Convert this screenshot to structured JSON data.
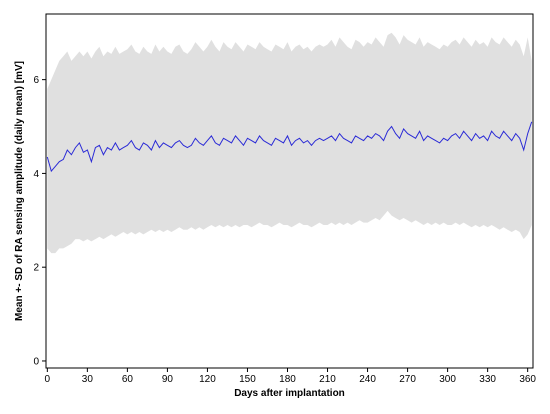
{
  "chart_data": {
    "type": "area",
    "xlabel": "Days after implantation",
    "ylabel": "Mean +- SD of RA sensing amplitude (daily mean) [mV]",
    "xlim": [
      -1,
      364
    ],
    "ylim": [
      -0.15,
      7.4
    ],
    "x_ticks": [
      0,
      30,
      60,
      90,
      120,
      150,
      180,
      210,
      240,
      270,
      300,
      330,
      360
    ],
    "y_ticks": [
      0,
      2,
      4,
      6
    ],
    "grid": false,
    "legend": "none",
    "colors": {
      "mean_line": "#2b2bd6",
      "sd_band": "#e0e0e0",
      "axis": "#000000"
    },
    "x": [
      0,
      3,
      6,
      9,
      12,
      15,
      18,
      21,
      24,
      27,
      30,
      33,
      36,
      39,
      42,
      45,
      48,
      51,
      54,
      57,
      60,
      63,
      66,
      69,
      72,
      75,
      78,
      81,
      84,
      87,
      90,
      93,
      96,
      99,
      102,
      105,
      108,
      111,
      114,
      117,
      120,
      123,
      126,
      129,
      132,
      135,
      138,
      141,
      144,
      147,
      150,
      153,
      156,
      159,
      162,
      165,
      168,
      171,
      174,
      177,
      180,
      183,
      186,
      189,
      192,
      195,
      198,
      201,
      204,
      207,
      210,
      213,
      216,
      219,
      222,
      225,
      228,
      231,
      234,
      237,
      240,
      243,
      246,
      249,
      252,
      255,
      258,
      261,
      264,
      267,
      270,
      273,
      276,
      279,
      282,
      285,
      288,
      291,
      294,
      297,
      300,
      303,
      306,
      309,
      312,
      315,
      318,
      321,
      324,
      327,
      330,
      333,
      336,
      339,
      342,
      345,
      348,
      351,
      354,
      357,
      360,
      363
    ],
    "series": [
      {
        "values": [
          4.35,
          4.05,
          4.15,
          4.25,
          4.3,
          4.5,
          4.4,
          4.55,
          4.65,
          4.45,
          4.5,
          4.25,
          4.55,
          4.6,
          4.4,
          4.55,
          4.5,
          4.65,
          4.5,
          4.55,
          4.6,
          4.7,
          4.55,
          4.5,
          4.65,
          4.6,
          4.5,
          4.7,
          4.55,
          4.65,
          4.6,
          4.55,
          4.65,
          4.7,
          4.6,
          4.55,
          4.6,
          4.75,
          4.65,
          4.6,
          4.7,
          4.8,
          4.65,
          4.6,
          4.75,
          4.7,
          4.65,
          4.8,
          4.7,
          4.6,
          4.75,
          4.7,
          4.65,
          4.8,
          4.7,
          4.65,
          4.6,
          4.75,
          4.7,
          4.65,
          4.8,
          4.6,
          4.7,
          4.75,
          4.65,
          4.7,
          4.6,
          4.7,
          4.75,
          4.7,
          4.75,
          4.8,
          4.7,
          4.85,
          4.75,
          4.7,
          4.65,
          4.8,
          4.75,
          4.7,
          4.8,
          4.75,
          4.85,
          4.8,
          4.7,
          4.9,
          5.0,
          4.85,
          4.75,
          4.95,
          4.85,
          4.8,
          4.75,
          4.9,
          4.7,
          4.8,
          4.75,
          4.7,
          4.65,
          4.75,
          4.7,
          4.8,
          4.85,
          4.75,
          4.9,
          4.8,
          4.7,
          4.85,
          4.75,
          4.8,
          4.7,
          4.9,
          4.8,
          4.75,
          4.9,
          4.8,
          4.7,
          4.85,
          4.75,
          4.5,
          4.85,
          5.1
        ]
      },
      {
        "values": [
          2.4,
          2.3,
          2.3,
          2.4,
          2.4,
          2.45,
          2.5,
          2.6,
          2.6,
          2.55,
          2.6,
          2.55,
          2.6,
          2.65,
          2.6,
          2.65,
          2.7,
          2.65,
          2.7,
          2.75,
          2.7,
          2.75,
          2.7,
          2.75,
          2.7,
          2.75,
          2.8,
          2.75,
          2.8,
          2.75,
          2.8,
          2.75,
          2.8,
          2.85,
          2.8,
          2.8,
          2.85,
          2.8,
          2.85,
          2.8,
          2.85,
          2.9,
          2.85,
          2.9,
          2.85,
          2.9,
          2.85,
          2.9,
          2.85,
          2.9,
          2.9,
          2.85,
          2.9,
          2.95,
          2.9,
          2.9,
          2.85,
          2.9,
          2.95,
          2.9,
          2.9,
          2.85,
          2.9,
          2.95,
          2.9,
          2.9,
          2.85,
          2.9,
          2.95,
          2.9,
          2.9,
          2.95,
          2.9,
          2.95,
          2.9,
          2.95,
          2.9,
          2.95,
          3.0,
          2.95,
          2.95,
          3.0,
          3.05,
          3.0,
          3.1,
          3.2,
          3.1,
          3.05,
          3.0,
          3.05,
          3.0,
          2.95,
          3.0,
          2.95,
          2.9,
          2.95,
          2.9,
          2.95,
          2.9,
          2.95,
          2.9,
          2.9,
          2.95,
          2.9,
          2.95,
          2.9,
          2.85,
          2.9,
          2.85,
          2.9,
          2.85,
          2.9,
          2.85,
          2.8,
          2.85,
          2.8,
          2.75,
          2.8,
          2.75,
          2.6,
          2.7,
          2.9
        ]
      },
      {
        "values": [
          5.8,
          6.0,
          6.2,
          6.4,
          6.5,
          6.6,
          6.4,
          6.5,
          6.6,
          6.5,
          6.6,
          6.45,
          6.6,
          6.7,
          6.5,
          6.6,
          6.55,
          6.7,
          6.55,
          6.6,
          6.65,
          6.75,
          6.6,
          6.55,
          6.7,
          6.6,
          6.55,
          6.75,
          6.6,
          6.7,
          6.6,
          6.55,
          6.7,
          6.75,
          6.6,
          6.55,
          6.65,
          6.8,
          6.7,
          6.6,
          6.7,
          6.85,
          6.7,
          6.6,
          6.8,
          6.7,
          6.65,
          6.8,
          6.7,
          6.6,
          6.75,
          6.7,
          6.65,
          6.8,
          6.7,
          6.65,
          6.6,
          6.75,
          6.7,
          6.65,
          6.8,
          6.6,
          6.7,
          6.75,
          6.65,
          6.7,
          6.6,
          6.7,
          6.75,
          6.7,
          6.75,
          6.85,
          6.7,
          6.9,
          6.8,
          6.7,
          6.65,
          6.85,
          6.8,
          6.7,
          6.8,
          6.75,
          6.9,
          6.8,
          6.7,
          6.95,
          7.0,
          6.9,
          6.75,
          6.95,
          6.85,
          6.8,
          6.75,
          6.9,
          6.7,
          6.8,
          6.75,
          6.7,
          6.65,
          6.75,
          6.7,
          6.8,
          6.85,
          6.75,
          6.9,
          6.8,
          6.7,
          6.85,
          6.75,
          6.8,
          6.7,
          6.9,
          6.8,
          6.75,
          6.9,
          6.8,
          6.7,
          6.85,
          6.75,
          6.5,
          6.9,
          6.4
        ]
      }
    ]
  }
}
